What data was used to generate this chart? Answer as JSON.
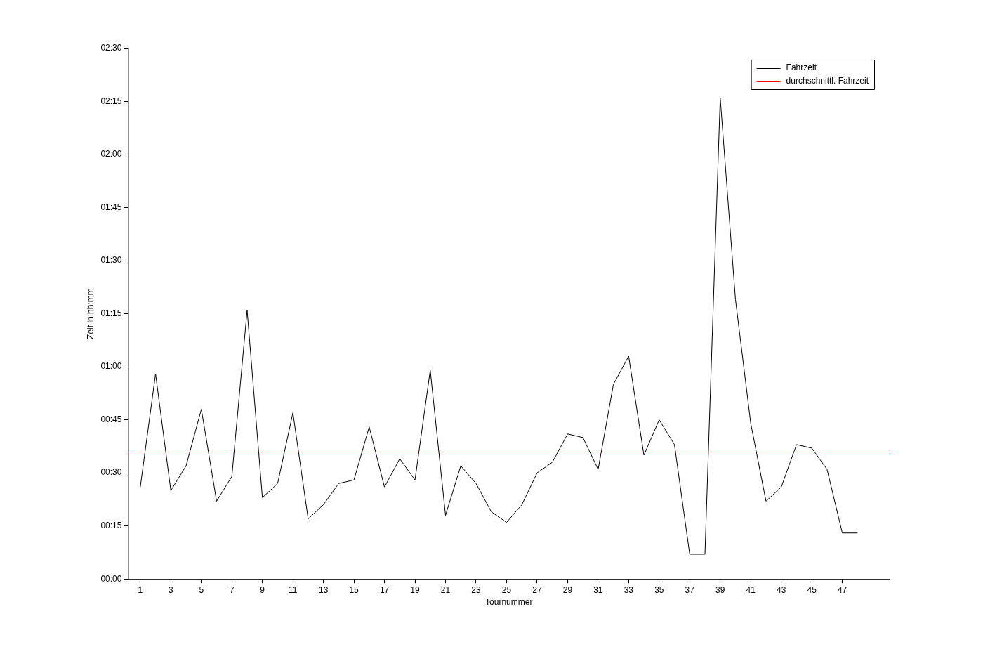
{
  "chart_data": {
    "type": "line",
    "xlabel": "Tournummer",
    "ylabel": "Zeit in hh:mm",
    "x": [
      1,
      2,
      3,
      4,
      5,
      6,
      7,
      8,
      9,
      10,
      11,
      12,
      13,
      14,
      15,
      16,
      17,
      18,
      19,
      20,
      21,
      22,
      23,
      24,
      25,
      26,
      27,
      28,
      29,
      30,
      31,
      32,
      33,
      34,
      35,
      36,
      37,
      38,
      39,
      40,
      41,
      42,
      43,
      44,
      45,
      46,
      47,
      48
    ],
    "series": [
      {
        "name": "Fahrzeit",
        "color": "#000000",
        "values": [
          26,
          58,
          25,
          32,
          48,
          22,
          29,
          76,
          23,
          27,
          47,
          17,
          21,
          27,
          28,
          43,
          26,
          34,
          28,
          59,
          18,
          32,
          27,
          19,
          16,
          21,
          30,
          33,
          41,
          40,
          31,
          55,
          63,
          35,
          45,
          38,
          7,
          7,
          136,
          79,
          44,
          22,
          26,
          38,
          37,
          31,
          13,
          13
        ]
      }
    ],
    "ref_lines": [
      {
        "axis": "y",
        "value": 35.3,
        "label": "durchschnittl. Fahrzeit",
        "color": "#ff0000"
      }
    ],
    "xlim": [
      0.2,
      50.1
    ],
    "xticks": [
      1,
      3,
      5,
      7,
      9,
      11,
      13,
      15,
      17,
      19,
      21,
      23,
      25,
      27,
      29,
      31,
      33,
      35,
      37,
      39,
      41,
      43,
      45,
      47
    ],
    "ylim": [
      0,
      150
    ],
    "yticks": [
      {
        "value": 0,
        "label": "00:00"
      },
      {
        "value": 15,
        "label": "00:15"
      },
      {
        "value": 30,
        "label": "00:30"
      },
      {
        "value": 45,
        "label": "00:45"
      },
      {
        "value": 60,
        "label": "01:00"
      },
      {
        "value": 75,
        "label": "01:15"
      },
      {
        "value": 90,
        "label": "01:30"
      },
      {
        "value": 105,
        "label": "01:45"
      },
      {
        "value": 120,
        "label": "02:00"
      },
      {
        "value": 135,
        "label": "02:15"
      },
      {
        "value": 150,
        "label": "02:30"
      }
    ],
    "grid": false,
    "legend": "top right",
    "marker": "none",
    "line_style": "solid"
  }
}
